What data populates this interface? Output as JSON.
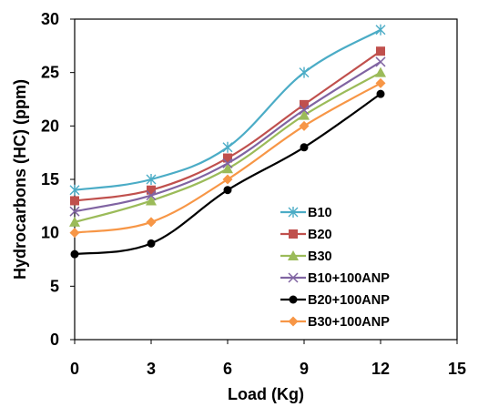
{
  "chart_data": {
    "type": "line",
    "title": "",
    "xlabel": "Load (Kg)",
    "ylabel": "Hydrocarbons  (HC) (ppm)",
    "xlim": [
      0,
      15
    ],
    "ylim": [
      0,
      30
    ],
    "xticks": [
      0,
      3,
      6,
      9,
      12,
      15
    ],
    "yticks": [
      0,
      5,
      10,
      15,
      20,
      25,
      30
    ],
    "x": [
      0,
      3,
      6,
      9,
      12
    ],
    "grid": false,
    "legend_position": "inside-lower-right",
    "series": [
      {
        "name": "B10",
        "values": [
          14,
          15,
          18,
          25,
          29
        ],
        "color": "#4bacc6",
        "marker": "asterisk"
      },
      {
        "name": "B20",
        "values": [
          13,
          14,
          17,
          22,
          27
        ],
        "color": "#c0504d",
        "marker": "square"
      },
      {
        "name": "B30",
        "values": [
          11,
          13,
          16,
          21,
          25
        ],
        "color": "#9bbb59",
        "marker": "triangle"
      },
      {
        "name": "B10+100ANP",
        "values": [
          12,
          13.5,
          16.5,
          21.5,
          26
        ],
        "color": "#8064a2",
        "marker": "x"
      },
      {
        "name": "B20+100ANP",
        "values": [
          8,
          9,
          14,
          18,
          23
        ],
        "color": "#000000",
        "marker": "circle"
      },
      {
        "name": "B30+100ANP",
        "values": [
          10,
          11,
          15,
          20,
          24
        ],
        "color": "#f79646",
        "marker": "diamond"
      }
    ]
  }
}
